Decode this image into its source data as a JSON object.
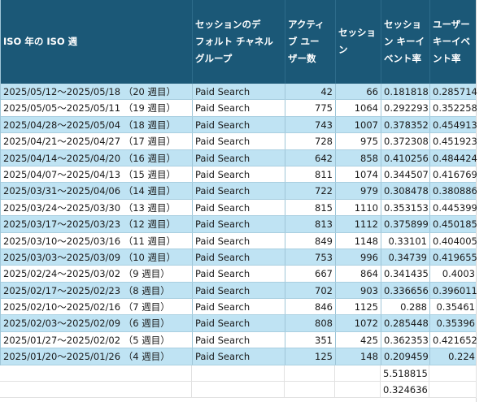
{
  "header": {
    "col1": "ISO 年の ISO 週",
    "col2_lines": [
      "セッションのデ",
      "フォルト チャネル",
      "グループ"
    ],
    "col3_lines": [
      "アクティ",
      "ブ ユー",
      "ザー数"
    ],
    "col4_lines": [
      "セッショ",
      "ン"
    ],
    "col5_lines": [
      "セッショ",
      "ン キーイ",
      "ベント率"
    ],
    "col6_lines": [
      "ユーザー",
      "キーイベ",
      "ント率"
    ]
  },
  "rows": [
    {
      "week": "2025/05/12～2025/05/18 （20 週目）",
      "channel": "Paid Search",
      "users": "42",
      "sessions": "66",
      "session_rate": "0.181818",
      "user_rate": "0.285714"
    },
    {
      "week": "2025/05/05～2025/05/11 （19 週目）",
      "channel": "Paid Search",
      "users": "775",
      "sessions": "1064",
      "session_rate": "0.292293",
      "user_rate": "0.352258"
    },
    {
      "week": "2025/04/28～2025/05/04 （18 週目）",
      "channel": "Paid Search",
      "users": "743",
      "sessions": "1007",
      "session_rate": "0.378352",
      "user_rate": "0.454913"
    },
    {
      "week": "2025/04/21～2025/04/27 （17 週目）",
      "channel": "Paid Search",
      "users": "728",
      "sessions": "975",
      "session_rate": "0.372308",
      "user_rate": "0.451923"
    },
    {
      "week": "2025/04/14～2025/04/20 （16 週目）",
      "channel": "Paid Search",
      "users": "642",
      "sessions": "858",
      "session_rate": "0.410256",
      "user_rate": "0.484424"
    },
    {
      "week": "2025/04/07～2025/04/13 （15 週目）",
      "channel": "Paid Search",
      "users": "811",
      "sessions": "1074",
      "session_rate": "0.344507",
      "user_rate": "0.416769"
    },
    {
      "week": "2025/03/31～2025/04/06 （14 週目）",
      "channel": "Paid Search",
      "users": "722",
      "sessions": "979",
      "session_rate": "0.308478",
      "user_rate": "0.380886"
    },
    {
      "week": "2025/03/24～2025/03/30 （13 週目）",
      "channel": "Paid Search",
      "users": "815",
      "sessions": "1110",
      "session_rate": "0.353153",
      "user_rate": "0.445399"
    },
    {
      "week": "2025/03/17～2025/03/23 （12 週目）",
      "channel": "Paid Search",
      "users": "813",
      "sessions": "1112",
      "session_rate": "0.375899",
      "user_rate": "0.450185"
    },
    {
      "week": "2025/03/10～2025/03/16 （11 週目）",
      "channel": "Paid Search",
      "users": "849",
      "sessions": "1148",
      "session_rate": "0.33101",
      "user_rate": "0.404005"
    },
    {
      "week": "2025/03/03～2025/03/09 （10 週目）",
      "channel": "Paid Search",
      "users": "753",
      "sessions": "996",
      "session_rate": "0.34739",
      "user_rate": "0.419655"
    },
    {
      "week": "2025/02/24～2025/03/02 （9 週目）",
      "channel": "Paid Search",
      "users": "667",
      "sessions": "864",
      "session_rate": "0.341435",
      "user_rate": "0.4003"
    },
    {
      "week": "2025/02/17～2025/02/23 （8 週目）",
      "channel": "Paid Search",
      "users": "702",
      "sessions": "903",
      "session_rate": "0.336656",
      "user_rate": "0.396011"
    },
    {
      "week": "2025/02/10～2025/02/16 （7 週目）",
      "channel": "Paid Search",
      "users": "846",
      "sessions": "1125",
      "session_rate": "0.288",
      "user_rate": "0.35461"
    },
    {
      "week": "2025/02/03～2025/02/09 （6 週目）",
      "channel": "Paid Search",
      "users": "808",
      "sessions": "1072",
      "session_rate": "0.285448",
      "user_rate": "0.35396"
    },
    {
      "week": "2025/01/27～2025/02/02 （5 週目）",
      "channel": "Paid Search",
      "users": "351",
      "sessions": "425",
      "session_rate": "0.362353",
      "user_rate": "0.421652"
    },
    {
      "week": "2025/01/20～2025/01/26 （4 週目）",
      "channel": "Paid Search",
      "users": "125",
      "sessions": "148",
      "session_rate": "0.209459",
      "user_rate": "0.224"
    }
  ],
  "totals": {
    "sum_session_rate": "5.518815",
    "avg_session_rate": "0.324636"
  }
}
